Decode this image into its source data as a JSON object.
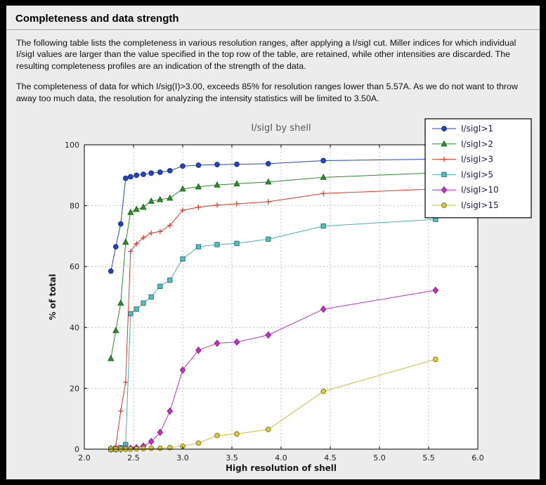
{
  "page": {
    "title": "Completeness and data strength",
    "paragraph1": "The following table lists the completeness in various resolution ranges, after applying a I/sigI cut. Miller indices for which individual I/sigI values are larger than the value specified in the top row of the table, are retained, while other intensities are discarded. The resulting completeness profiles are an indication of the strength of the data.",
    "paragraph2": "The completeness of data for which I/sig(I)>3.00, exceeds  85% for resolution ranges lower than 5.57A. As we do not want to throw away too much data, the resolution for analyzing the intensity statistics will be limited to 3.50A."
  },
  "theme": {
    "page_background": "#ececec",
    "frame": "#000000",
    "plot_background": "#ffffff",
    "plot_border": "#000000",
    "grid": "#b3b3b3",
    "tick_text": "#222222",
    "axis_label_text": "#1a1a1a",
    "chart_title_color": "#595959",
    "legend_background": "#ffffff",
    "legend_border": "#000000",
    "legend_text": "#1d1d52"
  },
  "chart_data": {
    "type": "line",
    "title": "I/sigI by shell",
    "xlabel": "High resolution of shell",
    "ylabel": "% of total",
    "xlim": [
      2.0,
      6.0
    ],
    "ylim": [
      0,
      100
    ],
    "grid": true,
    "legend_position": "upper right",
    "xtick_values": [
      2.0,
      2.5,
      3.0,
      3.5,
      4.0,
      4.5,
      5.0,
      5.5,
      6.0
    ],
    "xtick_labels": [
      "2.0",
      "2.5",
      "3.0",
      "3.5",
      "4.0",
      "4.5",
      "5.0",
      "5.5",
      "6.0"
    ],
    "ytick_values": [
      0,
      20,
      40,
      60,
      80,
      100
    ],
    "ytick_labels": [
      "0",
      "20",
      "40",
      "60",
      "80",
      "100"
    ],
    "x": [
      2.27,
      2.32,
      2.37,
      2.42,
      2.47,
      2.53,
      2.6,
      2.68,
      2.77,
      2.87,
      3.0,
      3.16,
      3.35,
      3.55,
      3.87,
      4.43,
      5.57
    ],
    "series": [
      {
        "name": "I/sigI>1",
        "color": "#2243c2",
        "marker": "circle",
        "marker_fill": "#2243c2",
        "marker_edge": "#17288c",
        "values": [
          58.5,
          66.5,
          74.0,
          89.0,
          89.5,
          90.0,
          90.3,
          90.7,
          91.0,
          91.5,
          93.0,
          93.3,
          93.5,
          93.6,
          93.8,
          94.8,
          95.3
        ]
      },
      {
        "name": "I/sigI>2",
        "color": "#2e8b2e",
        "marker": "triangle",
        "marker_fill": "#2e8b2e",
        "marker_edge": "#1d5c1d",
        "values": [
          29.8,
          39.0,
          48.0,
          68.0,
          77.8,
          78.8,
          79.5,
          81.5,
          82.0,
          82.5,
          85.5,
          86.2,
          86.8,
          87.2,
          87.8,
          89.3,
          90.8
        ]
      },
      {
        "name": "I/sigI>3",
        "color": "#df372a",
        "marker": "plus",
        "marker_fill": "none",
        "marker_edge": "#df372a",
        "values": [
          0.5,
          1.0,
          12.5,
          22.0,
          65.0,
          67.5,
          69.5,
          71.0,
          71.5,
          73.5,
          78.5,
          79.5,
          80.2,
          80.6,
          81.3,
          84.0,
          85.5
        ]
      },
      {
        "name": "I/sigI>5",
        "color": "#46b2b2",
        "marker": "square",
        "marker_fill": "#55bdbd",
        "marker_edge": "#237270",
        "values": [
          0.0,
          0.0,
          0.5,
          1.5,
          44.5,
          46.0,
          48.0,
          50.0,
          53.5,
          55.5,
          62.5,
          66.5,
          67.2,
          67.6,
          69.0,
          73.3,
          75.5
        ]
      },
      {
        "name": "I/sigI>10",
        "color": "#c130c1",
        "marker": "diamond",
        "marker_fill": "#c130c1",
        "marker_edge": "#7d1b7d",
        "values": [
          0.0,
          0.0,
          0.0,
          0.2,
          0.3,
          0.5,
          1.0,
          2.5,
          5.5,
          12.5,
          26.0,
          32.5,
          34.8,
          35.2,
          37.5,
          46.0,
          52.2
        ]
      },
      {
        "name": "I/sigI>15",
        "color": "#ccbf38",
        "marker": "circle",
        "marker_fill": "#d7ca3e",
        "marker_edge": "#84721c",
        "values": [
          0.0,
          0.0,
          0.0,
          0.0,
          0.0,
          0.1,
          0.2,
          0.3,
          0.3,
          0.5,
          1.0,
          2.0,
          4.5,
          5.0,
          6.5,
          19.0,
          29.5
        ]
      }
    ]
  }
}
